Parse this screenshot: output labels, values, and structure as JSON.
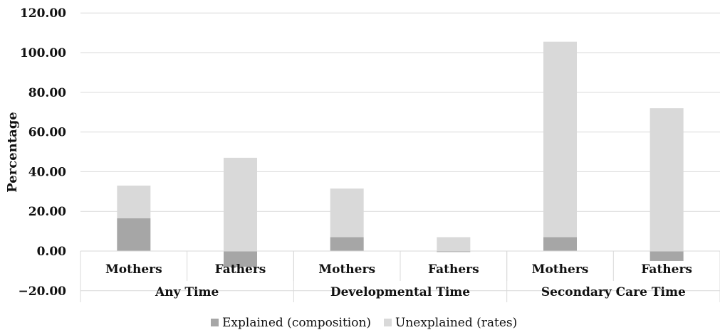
{
  "chart_data": {
    "type": "bar",
    "stacked": true,
    "title": "",
    "xlabel": "",
    "ylabel": "Percentage",
    "ylim": [
      -20,
      120
    ],
    "yticks": [
      -20,
      0,
      20,
      40,
      60,
      80,
      100,
      120
    ],
    "ytick_labels": [
      "−20.00",
      "0.00",
      "20.00",
      "40.00",
      "60.00",
      "80.00",
      "100.00",
      "120.00"
    ],
    "grid": "horizontal",
    "legend_position": "bottom",
    "categories": [
      "Mothers",
      "Fathers",
      "Mothers",
      "Fathers",
      "Mothers",
      "Fathers"
    ],
    "groups": [
      {
        "label": "Any Time",
        "span": [
          0,
          1
        ]
      },
      {
        "label": "Developmental Time",
        "span": [
          2,
          3
        ]
      },
      {
        "label": "Secondary Care Time",
        "span": [
          4,
          5
        ]
      }
    ],
    "series": [
      {
        "name": "Explained (composition)",
        "color": "#a6a6a6",
        "values": [
          16.5,
          -8.0,
          7.0,
          -0.5,
          7.0,
          -5.0
        ]
      },
      {
        "name": "Unexplained (rates)",
        "color": "#d9d9d9",
        "values": [
          16.5,
          47.0,
          24.5,
          7.0,
          98.5,
          72.0
        ]
      }
    ]
  }
}
